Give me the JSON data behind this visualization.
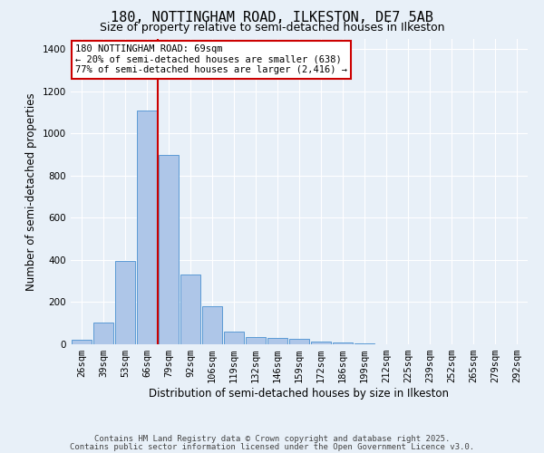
{
  "title": "180, NOTTINGHAM ROAD, ILKESTON, DE7 5AB",
  "subtitle": "Size of property relative to semi-detached houses in Ilkeston",
  "xlabel": "Distribution of semi-detached houses by size in Ilkeston",
  "ylabel": "Number of semi-detached properties",
  "footnote1": "Contains HM Land Registry data © Crown copyright and database right 2025.",
  "footnote2": "Contains public sector information licensed under the Open Government Licence v3.0.",
  "bar_labels": [
    "26sqm",
    "39sqm",
    "53sqm",
    "66sqm",
    "79sqm",
    "92sqm",
    "106sqm",
    "119sqm",
    "132sqm",
    "146sqm",
    "159sqm",
    "172sqm",
    "186sqm",
    "199sqm",
    "212sqm",
    "225sqm",
    "239sqm",
    "252sqm",
    "265sqm",
    "279sqm",
    "292sqm"
  ],
  "bar_values": [
    20,
    105,
    395,
    1110,
    900,
    330,
    180,
    60,
    35,
    30,
    25,
    15,
    10,
    5,
    0,
    0,
    0,
    0,
    0,
    0,
    0
  ],
  "bar_color": "#aec6e8",
  "bar_edge_color": "#5b9bd5",
  "ylim": [
    0,
    1450
  ],
  "yticks": [
    0,
    200,
    400,
    600,
    800,
    1000,
    1200,
    1400
  ],
  "vline_x": 3.5,
  "annotation_title": "180 NOTTINGHAM ROAD: 69sqm",
  "annotation_line1": "← 20% of semi-detached houses are smaller (638)",
  "annotation_line2": "77% of semi-detached houses are larger (2,416) →",
  "annotation_box_color": "#ffffff",
  "annotation_box_edge": "#cc0000",
  "vline_color": "#cc0000",
  "bg_color": "#e8f0f8",
  "grid_color": "#ffffff",
  "title_fontsize": 11,
  "subtitle_fontsize": 9,
  "axis_label_fontsize": 8.5,
  "tick_fontsize": 7.5,
  "annotation_fontsize": 7.5,
  "footnote_fontsize": 6.5
}
